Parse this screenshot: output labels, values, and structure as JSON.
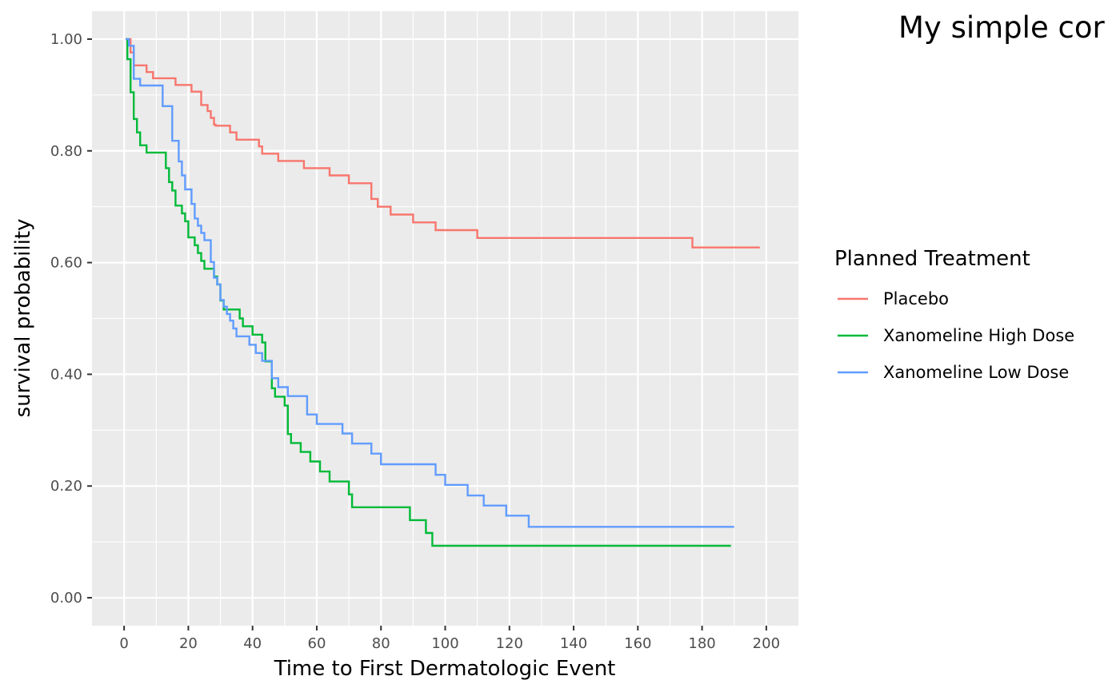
{
  "chart_data": {
    "type": "line",
    "title": "My simple cor",
    "xlabel": "Time to First Dermatologic Event",
    "ylabel": "survival probability",
    "xlim": [
      -10,
      210
    ],
    "ylim": [
      -0.05,
      1.05
    ],
    "x_ticks": [
      0,
      20,
      40,
      60,
      80,
      100,
      120,
      140,
      160,
      180,
      200
    ],
    "x_tick_labels": [
      "0",
      "20",
      "40",
      "60",
      "80",
      "100",
      "120",
      "140",
      "160",
      "180",
      "200"
    ],
    "y_ticks": [
      0.0,
      0.2,
      0.4,
      0.6,
      0.8,
      1.0
    ],
    "y_tick_labels": [
      "0.00",
      "0.20",
      "0.40",
      "0.60",
      "0.80",
      "1.00"
    ],
    "grid": true,
    "legend": {
      "title": "Planned Treatment",
      "position": "right"
    },
    "series": [
      {
        "name": "Placebo",
        "color": "#F8766D",
        "step": true,
        "points": [
          [
            0.5,
            1.0
          ],
          [
            2,
            0.976
          ],
          [
            3,
            0.953
          ],
          [
            7,
            0.941
          ],
          [
            9,
            0.93
          ],
          [
            16,
            0.918
          ],
          [
            21,
            0.906
          ],
          [
            24,
            0.882
          ],
          [
            26,
            0.871
          ],
          [
            27,
            0.859
          ],
          [
            28,
            0.847
          ],
          [
            28.5,
            0.845
          ],
          [
            33,
            0.833
          ],
          [
            35,
            0.82
          ],
          [
            42,
            0.808
          ],
          [
            43,
            0.795
          ],
          [
            48,
            0.782
          ],
          [
            56,
            0.769
          ],
          [
            64,
            0.756
          ],
          [
            70,
            0.742
          ],
          [
            77,
            0.714
          ],
          [
            79,
            0.7
          ],
          [
            83,
            0.686
          ],
          [
            90,
            0.672
          ],
          [
            97,
            0.658
          ],
          [
            110,
            0.644
          ],
          [
            177,
            0.627
          ],
          [
            198,
            0.627
          ]
        ]
      },
      {
        "name": "Xanomeline High Dose",
        "color": "#00BA38",
        "step": true,
        "points": [
          [
            0.5,
            1.0
          ],
          [
            1,
            0.964
          ],
          [
            2,
            0.905
          ],
          [
            3,
            0.857
          ],
          [
            4,
            0.833
          ],
          [
            5,
            0.81
          ],
          [
            7,
            0.797
          ],
          [
            13,
            0.769
          ],
          [
            14,
            0.744
          ],
          [
            15,
            0.729
          ],
          [
            16,
            0.702
          ],
          [
            18,
            0.688
          ],
          [
            19,
            0.674
          ],
          [
            20,
            0.645
          ],
          [
            22,
            0.631
          ],
          [
            23,
            0.617
          ],
          [
            24,
            0.603
          ],
          [
            25,
            0.589
          ],
          [
            28,
            0.575
          ],
          [
            29,
            0.561
          ],
          [
            30,
            0.532
          ],
          [
            31,
            0.516
          ],
          [
            36,
            0.5
          ],
          [
            37,
            0.486
          ],
          [
            40,
            0.471
          ],
          [
            43,
            0.457
          ],
          [
            44,
            0.423
          ],
          [
            46,
            0.375
          ],
          [
            47,
            0.36
          ],
          [
            50,
            0.344
          ],
          [
            51,
            0.293
          ],
          [
            52,
            0.277
          ],
          [
            55,
            0.261
          ],
          [
            58,
            0.244
          ],
          [
            61,
            0.226
          ],
          [
            64,
            0.208
          ],
          [
            70,
            0.185
          ],
          [
            71,
            0.162
          ],
          [
            89,
            0.139
          ],
          [
            94,
            0.116
          ],
          [
            96,
            0.093
          ],
          [
            189,
            0.093
          ]
        ]
      },
      {
        "name": "Xanomeline Low Dose",
        "color": "#619CFF",
        "step": true,
        "points": [
          [
            0.5,
            1.0
          ],
          [
            1.5,
            0.988
          ],
          [
            3,
            0.929
          ],
          [
            5,
            0.917
          ],
          [
            12,
            0.88
          ],
          [
            15,
            0.818
          ],
          [
            17,
            0.781
          ],
          [
            18,
            0.756
          ],
          [
            19,
            0.731
          ],
          [
            21,
            0.705
          ],
          [
            22,
            0.679
          ],
          [
            23,
            0.666
          ],
          [
            24,
            0.653
          ],
          [
            25,
            0.64
          ],
          [
            27,
            0.601
          ],
          [
            28,
            0.573
          ],
          [
            29,
            0.561
          ],
          [
            30,
            0.533
          ],
          [
            31,
            0.521
          ],
          [
            32,
            0.508
          ],
          [
            33,
            0.496
          ],
          [
            34,
            0.482
          ],
          [
            35,
            0.468
          ],
          [
            39,
            0.453
          ],
          [
            41,
            0.438
          ],
          [
            43,
            0.424
          ],
          [
            46,
            0.393
          ],
          [
            48,
            0.377
          ],
          [
            51,
            0.361
          ],
          [
            57,
            0.328
          ],
          [
            60,
            0.311
          ],
          [
            68,
            0.294
          ],
          [
            71,
            0.276
          ],
          [
            77,
            0.258
          ],
          [
            80,
            0.239
          ],
          [
            97,
            0.22
          ],
          [
            100,
            0.202
          ],
          [
            107,
            0.183
          ],
          [
            112,
            0.165
          ],
          [
            119,
            0.147
          ],
          [
            126,
            0.127
          ],
          [
            190,
            0.127
          ]
        ]
      }
    ]
  }
}
